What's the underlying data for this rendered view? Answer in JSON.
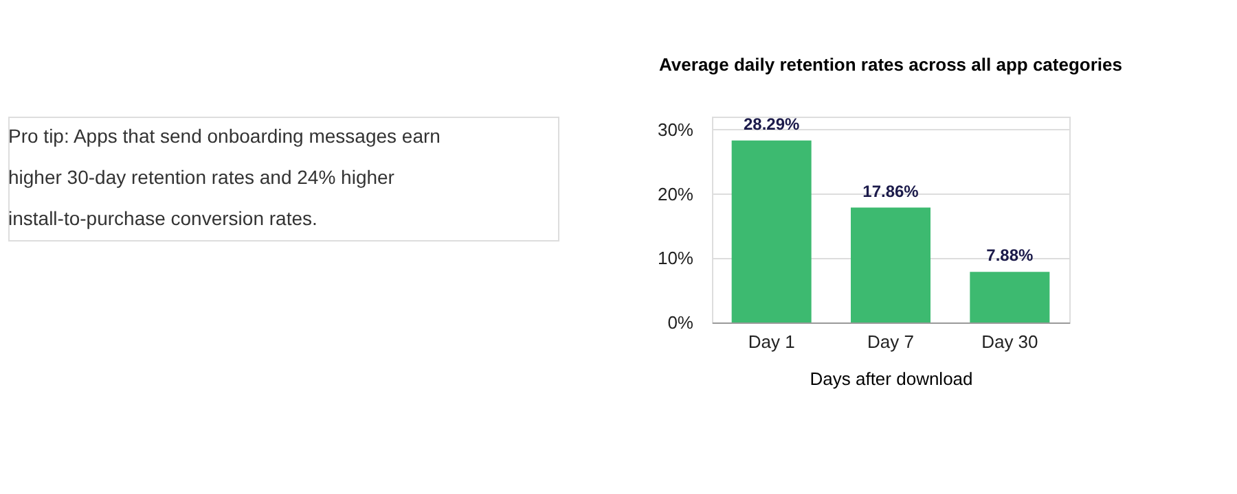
{
  "chart_data": {
    "type": "bar",
    "title": "Average daily retention rates across all app categories",
    "xlabel": "Days after download",
    "categories": [
      "Day 1",
      "Day 7",
      "Day 30"
    ],
    "values": [
      28.29,
      17.86,
      7.88
    ],
    "value_labels": [
      "28.29%",
      "17.86%",
      "7.88%"
    ],
    "color": "#3dba70",
    "ylim": [
      0,
      32
    ],
    "yticks": [
      {
        "value": 0,
        "label": "0%"
      },
      {
        "value": 10,
        "label": "10%"
      },
      {
        "value": 20,
        "label": "20%"
      },
      {
        "value": 30,
        "label": "30%"
      }
    ],
    "grid": "y",
    "annotations": [
      "Pro tip: Apps that send onboarding messages earn higher 30-day retention rates and 24% higher install-to-purchase conversion rates."
    ]
  }
}
